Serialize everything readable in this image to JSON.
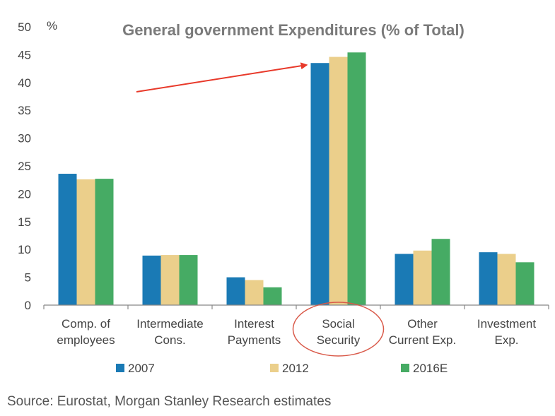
{
  "chart_data": {
    "type": "bar",
    "title": "General government Expenditures (% of Total)",
    "ylabel": "%",
    "xlabel": "",
    "ylim": [
      0,
      50
    ],
    "yticks": [
      0,
      5,
      10,
      15,
      20,
      25,
      30,
      35,
      40,
      45,
      50
    ],
    "grid": false,
    "legend_position": "bottom",
    "categories": [
      [
        "Comp. of",
        "employees"
      ],
      [
        "Intermediate",
        "Cons."
      ],
      [
        "Interest",
        "Payments"
      ],
      [
        "Social",
        "Security"
      ],
      [
        "Other",
        "Current Exp."
      ],
      [
        "Investment",
        "Exp."
      ]
    ],
    "series": [
      {
        "name": "2007",
        "color": "#1a7ab5",
        "values": [
          23.6,
          8.9,
          5.0,
          43.5,
          9.2,
          9.5
        ]
      },
      {
        "name": "2012",
        "color": "#ebcf8b",
        "values": [
          22.6,
          9.0,
          4.5,
          44.6,
          9.8,
          9.2
        ]
      },
      {
        "name": "2016E",
        "color": "#46ab64",
        "values": [
          22.7,
          9.0,
          3.2,
          45.4,
          11.9,
          7.7
        ]
      }
    ],
    "annotations": {
      "highlight_category_index": 3,
      "arrow_color": "#e8392a",
      "circle_color": "#d95a4a"
    }
  },
  "source_note": "Source: Eurostat, Morgan Stanley Research estimates"
}
